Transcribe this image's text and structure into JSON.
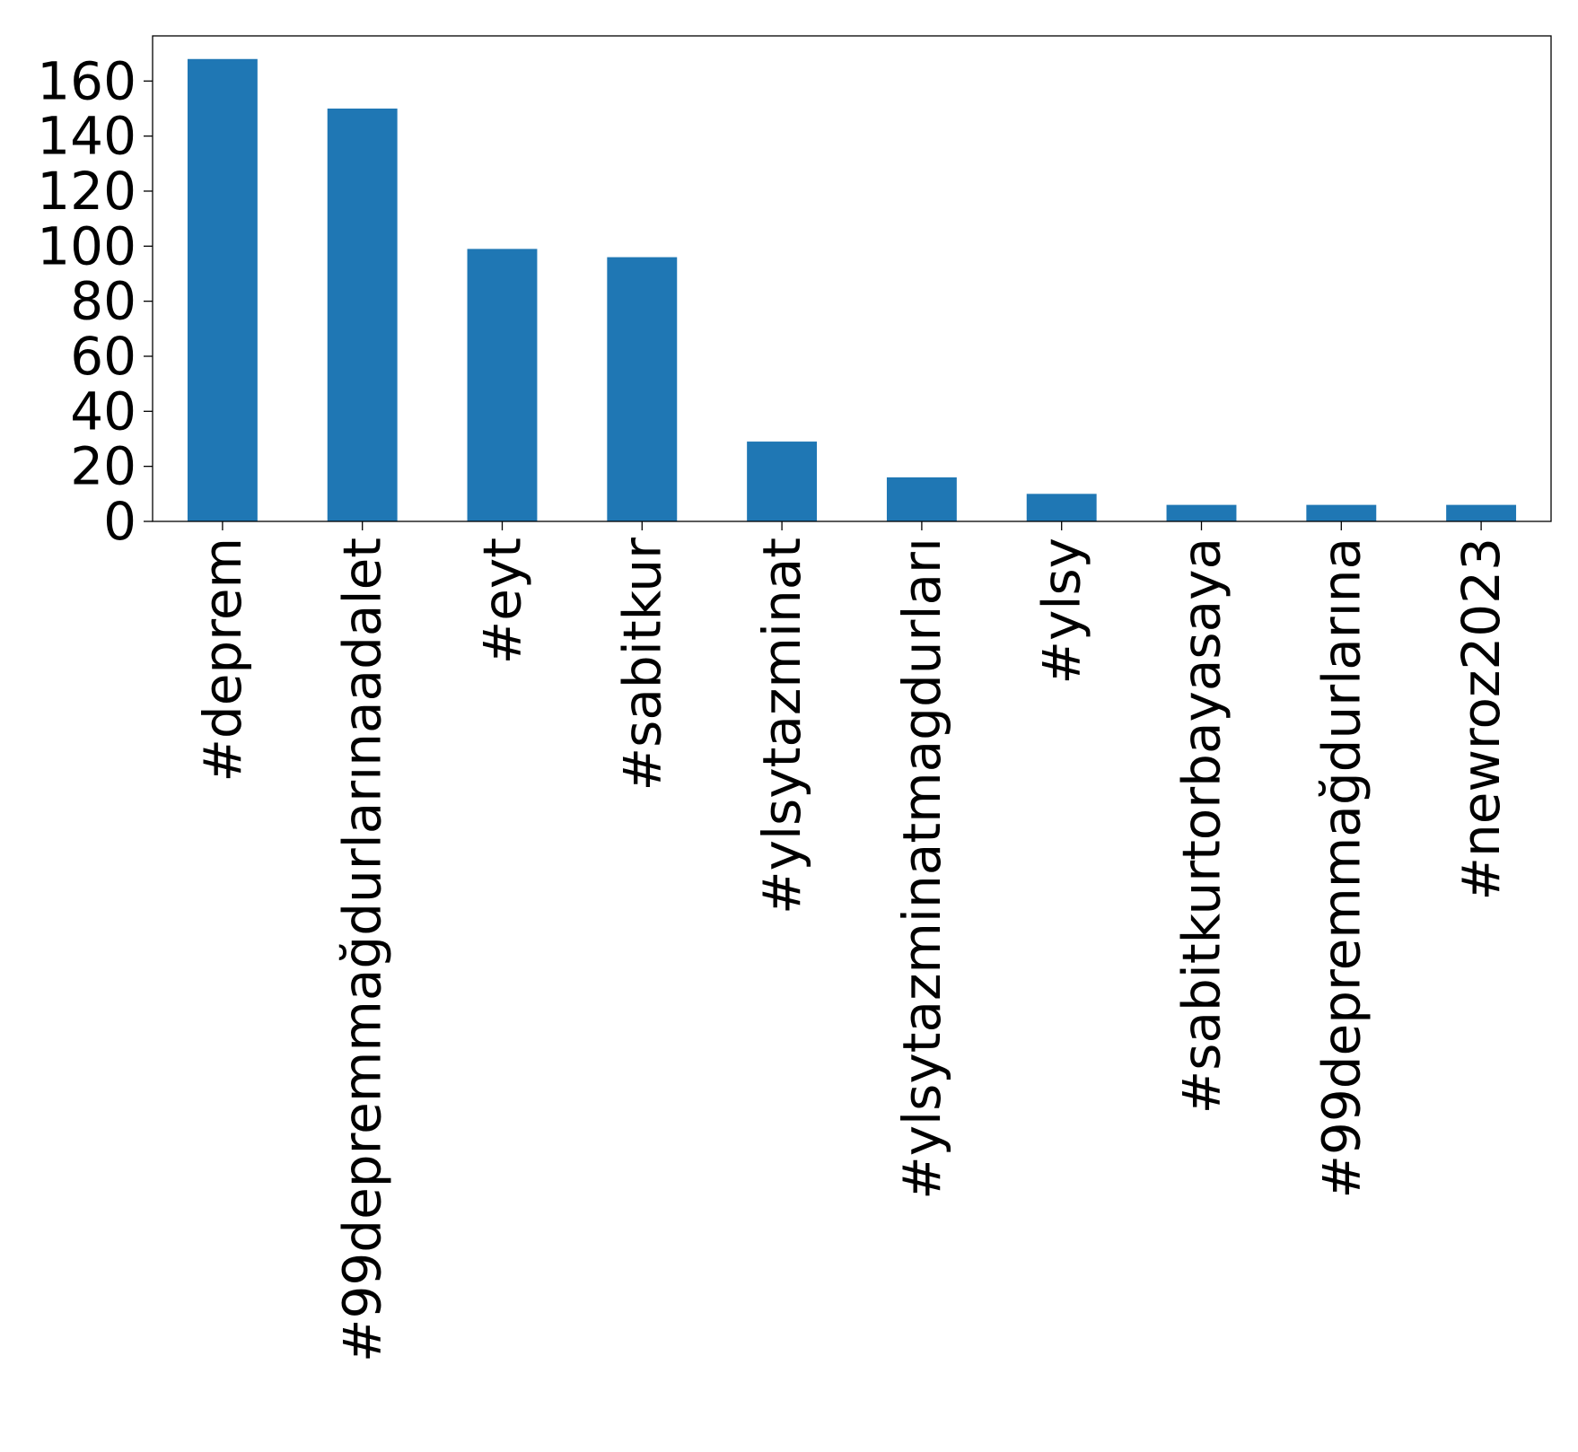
{
  "chart_data": {
    "type": "bar",
    "title": "",
    "xlabel": "",
    "ylabel": "",
    "categories": [
      "#deprem",
      "#99depremmağdurlarınaadalet",
      "#eyt",
      "#sabitkur",
      "#ylsytazminat",
      "#ylsytazminatmagdurları",
      "#ylsy",
      "#sabitkurtorbayasaya",
      "#99depremmağdurlarına",
      "#newroz2023"
    ],
    "values": [
      168,
      150,
      99,
      96,
      29,
      16,
      10,
      6,
      6,
      6
    ],
    "ylim": [
      0,
      176.4
    ],
    "yticks": [
      0,
      20,
      40,
      60,
      80,
      100,
      120,
      140,
      160
    ],
    "ytick_labels": [
      "0",
      "20",
      "40",
      "60",
      "80",
      "100",
      "120",
      "140",
      "160"
    ],
    "grid": false,
    "legend": "none",
    "bar_color": "#1f77b4"
  }
}
